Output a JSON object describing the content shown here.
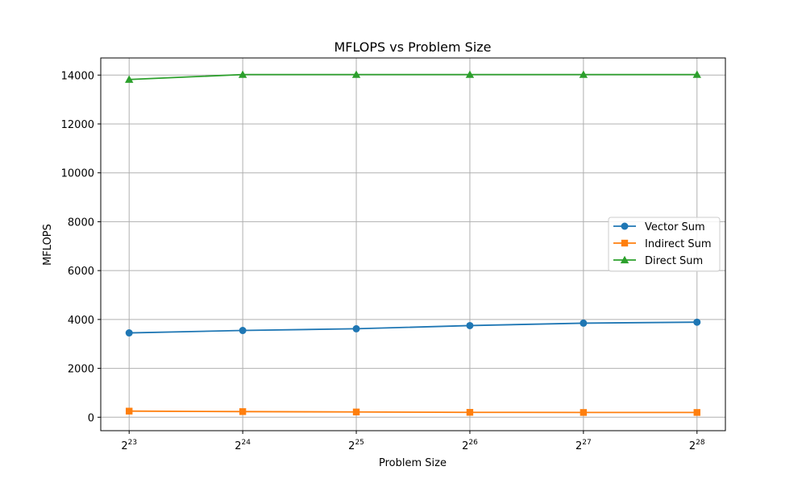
{
  "chart_data": {
    "type": "line",
    "title": "MFLOPS vs Problem Size",
    "xlabel": "Problem Size",
    "ylabel": "MFLOPS",
    "x": [
      8388608,
      16777216,
      33554432,
      67108864,
      134217728,
      268435456
    ],
    "x_tick_labels": [
      {
        "base": "2",
        "exp": "23"
      },
      {
        "base": "2",
        "exp": "24"
      },
      {
        "base": "2",
        "exp": "25"
      },
      {
        "base": "2",
        "exp": "26"
      },
      {
        "base": "2",
        "exp": "27"
      },
      {
        "base": "2",
        "exp": "28"
      }
    ],
    "x_scale": "log2",
    "yticks": [
      "0",
      "2000",
      "4000",
      "6000",
      "8000",
      "10000",
      "12000",
      "14000"
    ],
    "ylim": [
      -550,
      14700
    ],
    "grid": true,
    "legend_position": "center-right",
    "series": [
      {
        "name": "Vector Sum",
        "color": "#1f77b4",
        "marker": "circle",
        "values": [
          3450,
          3550,
          3620,
          3750,
          3850,
          3890
        ]
      },
      {
        "name": "Indirect Sum",
        "color": "#ff7f0e",
        "marker": "square",
        "values": [
          250,
          230,
          215,
          200,
          195,
          195
        ]
      },
      {
        "name": "Direct Sum",
        "color": "#2ca02c",
        "marker": "triangle",
        "values": [
          13820,
          14020,
          14020,
          14020,
          14020,
          14020
        ]
      }
    ]
  }
}
